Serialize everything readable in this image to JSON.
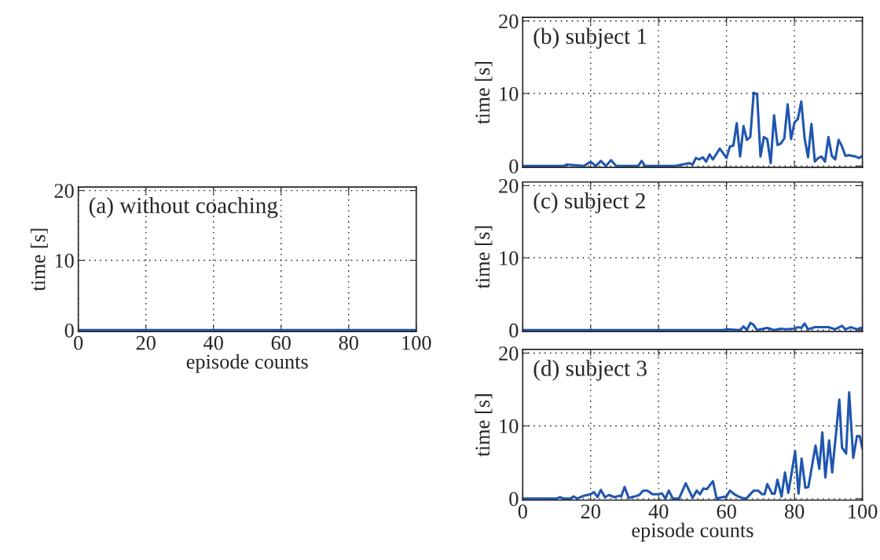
{
  "chart_data": [
    {
      "type": "line",
      "title": "(a) without coaching",
      "xlabel": "episode counts",
      "ylabel": "time [s]",
      "xlim": [
        0,
        100
      ],
      "ylim": [
        -0.2,
        20.5
      ],
      "xticks": [
        0,
        20,
        40,
        60,
        80,
        100
      ],
      "yticks": [
        0,
        10,
        20
      ],
      "grid": true,
      "series": [
        {
          "color": "#1f56b0",
          "x": [
            0,
            100
          ],
          "values": [
            0,
            0
          ]
        }
      ]
    },
    {
      "type": "line",
      "title": "(b) subject 1",
      "ylabel": "time [s]",
      "xlim": [
        0,
        100
      ],
      "ylim": [
        -0.2,
        20.5
      ],
      "xticks": [
        0,
        20,
        40,
        60,
        80,
        100
      ],
      "yticks": [
        0,
        10,
        20
      ],
      "grid": true,
      "tick_labels": "y",
      "series": [
        {
          "color": "#1f56b0",
          "x": [
            0,
            12,
            13,
            18,
            20,
            21.5,
            23,
            24.5,
            26,
            27.5,
            34,
            35,
            36,
            45,
            49,
            50,
            51,
            52,
            53,
            54,
            55,
            56,
            58,
            60,
            61,
            62,
            63,
            64,
            65,
            66,
            67,
            68,
            69,
            70,
            71,
            72,
            73,
            74,
            75,
            76,
            77,
            78,
            79,
            80,
            81,
            82,
            83,
            84,
            85,
            86,
            87,
            88,
            89,
            90,
            91,
            92,
            93,
            94,
            95,
            96,
            97,
            98,
            99,
            100
          ],
          "values": [
            0,
            0,
            0.2,
            0,
            0.6,
            0,
            0.7,
            0,
            0.8,
            0,
            0,
            0.7,
            0,
            0,
            0.4,
            0.2,
            1.1,
            0.9,
            1.2,
            0.6,
            1.6,
            0.9,
            2.4,
            1.1,
            2.7,
            2.8,
            5.9,
            1.3,
            5.5,
            3.6,
            4.0,
            10.1,
            9.9,
            1.3,
            4.0,
            3.7,
            0.4,
            7.0,
            2.9,
            3.1,
            3.8,
            8.5,
            3.7,
            6.0,
            6.5,
            8.9,
            3.8,
            1.2,
            5.8,
            0.6,
            1.1,
            1.3,
            0.6,
            4.0,
            1.4,
            0.9,
            3.6,
            2.7,
            1.4,
            1.5,
            1.4,
            1.3,
            1.1,
            1.4
          ]
        }
      ]
    },
    {
      "type": "line",
      "title": "(c) subject 2",
      "ylabel": "time [s]",
      "xlim": [
        0,
        100
      ],
      "ylim": [
        -0.2,
        20.5
      ],
      "xticks": [
        0,
        20,
        40,
        60,
        80,
        100
      ],
      "yticks": [
        0,
        10,
        20
      ],
      "grid": true,
      "tick_labels": "y",
      "series": [
        {
          "color": "#1f56b0",
          "x": [
            0,
            59,
            60,
            64,
            65,
            66,
            67,
            68,
            69,
            72,
            74,
            76,
            77.5,
            80,
            81,
            82,
            83,
            84,
            86,
            88,
            90,
            92,
            94,
            95,
            96.5,
            98.5,
            99.5,
            100
          ],
          "values": [
            0,
            0,
            0.1,
            0,
            0.5,
            0,
            1.0,
            0.7,
            0,
            0.3,
            0,
            0.2,
            0.1,
            0.2,
            0.4,
            0.3,
            0.9,
            0.1,
            0.4,
            0.4,
            0.4,
            0.1,
            0.6,
            0.1,
            0.4,
            0.1,
            0.3,
            0.1
          ]
        }
      ]
    },
    {
      "type": "line",
      "title": "(d) subject 3",
      "xlabel": "episode counts",
      "ylabel": "time [s]",
      "xlim": [
        0,
        100
      ],
      "ylim": [
        -0.2,
        20.5
      ],
      "xticks": [
        0,
        20,
        40,
        60,
        80,
        100
      ],
      "yticks": [
        0,
        10,
        20
      ],
      "grid": true,
      "series": [
        {
          "color": "#1f56b0",
          "x": [
            0,
            10,
            11,
            12,
            14,
            15,
            16,
            18,
            20,
            21,
            22,
            23,
            24.2,
            25.4,
            27,
            28.5,
            29,
            30,
            31.2,
            33,
            34.3,
            35.5,
            36.7,
            38.2,
            39.8,
            41,
            42,
            43,
            44.2,
            46,
            48,
            50,
            51.2,
            52.2,
            53.2,
            54.2,
            56,
            57.1,
            58.8,
            60,
            61,
            62.3,
            63.5,
            64.6,
            65.8,
            68,
            69.3,
            70.5,
            71.2,
            72,
            73.4,
            74.2,
            75,
            76.2,
            77.2,
            78.2,
            80.2,
            81.2,
            82.1,
            83.2,
            84.1,
            86.2,
            87.3,
            88.2,
            89.1,
            90.2,
            91.1,
            93.2,
            94,
            95.2,
            96.1,
            97.3,
            98.4,
            99.2,
            100
          ],
          "values": [
            0,
            0,
            0.2,
            0,
            0,
            0.3,
            0,
            0.4,
            0.6,
            0.9,
            0.2,
            1.2,
            0.2,
            0.5,
            0.2,
            0.4,
            0.3,
            1.6,
            0.1,
            0.3,
            0.5,
            1.1,
            1.1,
            0.6,
            0.6,
            0.7,
            0,
            1.1,
            0,
            0,
            2.1,
            0.1,
            1.1,
            0.6,
            1.4,
            1.3,
            2.4,
            0,
            0.2,
            0.3,
            1.1,
            0.6,
            0.3,
            0.1,
            0,
            1.1,
            1.1,
            0.6,
            0.6,
            2.0,
            0.7,
            0.7,
            2.6,
            0.3,
            3.6,
            0.8,
            6.5,
            0.7,
            5.5,
            1.5,
            1.6,
            7.3,
            4.1,
            9.1,
            2.9,
            8.0,
            3.6,
            13.6,
            7.0,
            6.2,
            14.6,
            5.6,
            8.6,
            8.6,
            6.9
          ]
        }
      ]
    }
  ]
}
